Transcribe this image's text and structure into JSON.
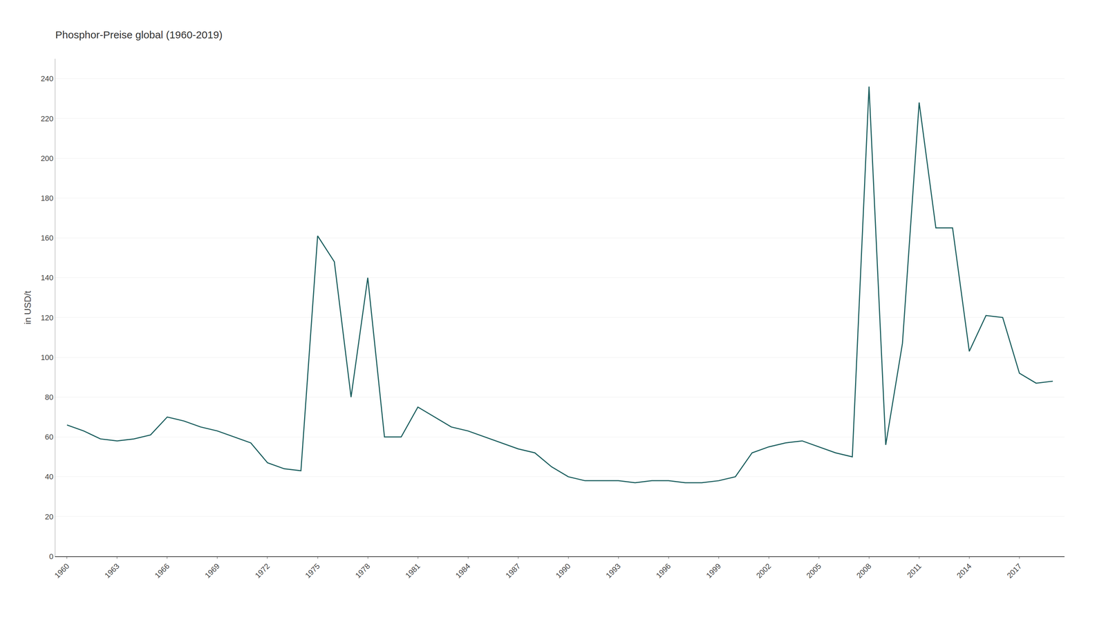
{
  "chart_data": {
    "type": "line",
    "title": "Phosphor-Preise global (1960-2019)",
    "ylabel": "in USD/t",
    "x": [
      1960,
      1961,
      1962,
      1963,
      1964,
      1965,
      1966,
      1967,
      1968,
      1969,
      1970,
      1971,
      1972,
      1973,
      1974,
      1975,
      1976,
      1977,
      1978,
      1979,
      1980,
      1981,
      1982,
      1983,
      1984,
      1985,
      1986,
      1987,
      1988,
      1989,
      1990,
      1991,
      1992,
      1993,
      1994,
      1995,
      1996,
      1997,
      1998,
      1999,
      2000,
      2001,
      2002,
      2003,
      2004,
      2005,
      2006,
      2007,
      2008,
      2009,
      2010,
      2011,
      2012,
      2013,
      2014,
      2015,
      2016,
      2017,
      2018,
      2019
    ],
    "values": [
      66,
      63,
      59,
      58,
      59,
      61,
      70,
      68,
      65,
      63,
      60,
      57,
      47,
      44,
      43,
      161,
      148,
      80,
      140,
      60,
      60,
      75,
      70,
      65,
      63,
      60,
      57,
      54,
      52,
      45,
      40,
      38,
      38,
      38,
      37,
      38,
      38,
      37,
      37,
      38,
      40,
      52,
      55,
      57,
      58,
      55,
      52,
      50,
      236,
      56,
      107,
      228,
      165,
      165,
      103,
      121,
      120,
      92,
      87,
      88
    ],
    "color": "#1b5e5e",
    "xlim": [
      1959.3,
      2019.7
    ],
    "xticks": [
      1960,
      1963,
      1966,
      1969,
      1972,
      1975,
      1978,
      1981,
      1984,
      1987,
      1990,
      1993,
      1996,
      1999,
      2002,
      2005,
      2008,
      2011,
      2014,
      2017
    ],
    "ylim": [
      0,
      250
    ],
    "yticks": [
      0,
      20,
      40,
      60,
      80,
      100,
      120,
      140,
      160,
      180,
      200,
      220,
      240
    ],
    "grid": true
  }
}
